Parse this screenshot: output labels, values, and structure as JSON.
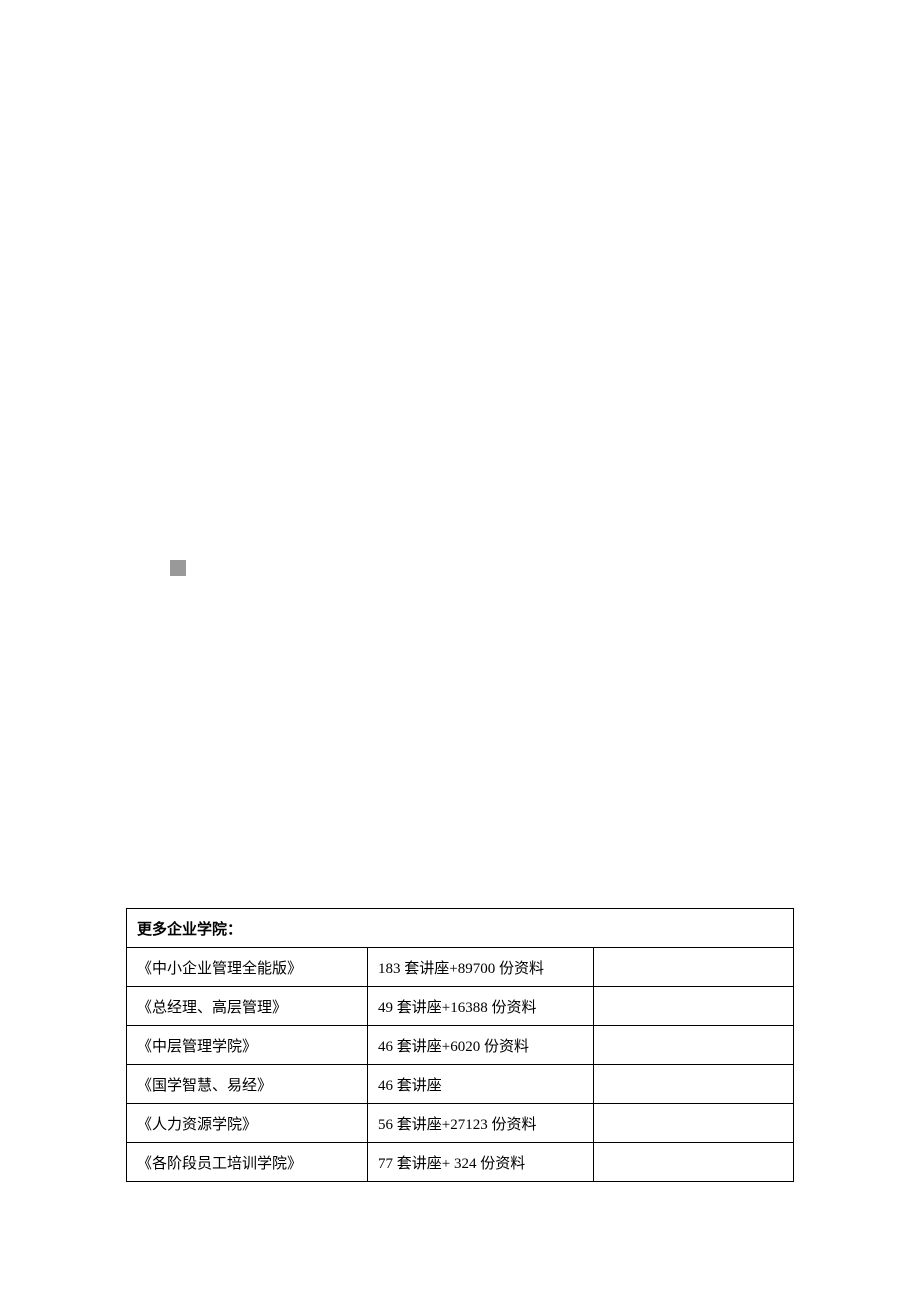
{
  "table": {
    "header": "更多企业学院：",
    "rows": [
      {
        "name": "《中小企业管理全能版》",
        "content": "183 套讲座+89700 份资料"
      },
      {
        "name": "《总经理、高层管理》",
        "content": "49 套讲座+16388 份资料"
      },
      {
        "name": "《中层管理学院》",
        "content": "46 套讲座+6020 份资料"
      },
      {
        "name": "《国学智慧、易经》",
        "content": "46 套讲座"
      },
      {
        "name": "《人力资源学院》",
        "content": "56 套讲座+27123 份资料"
      },
      {
        "name": "《各阶段员工培训学院》",
        "content": "77 套讲座+ 324 份资料"
      }
    ]
  },
  "styling": {
    "background_color": "#ffffff",
    "border_color": "#000000",
    "text_color": "#000000",
    "square_color": "#999999",
    "font_family": "SimSun",
    "header_fontsize": 15,
    "cell_fontsize": 15,
    "col1_width": 220,
    "col2_width": 205
  }
}
